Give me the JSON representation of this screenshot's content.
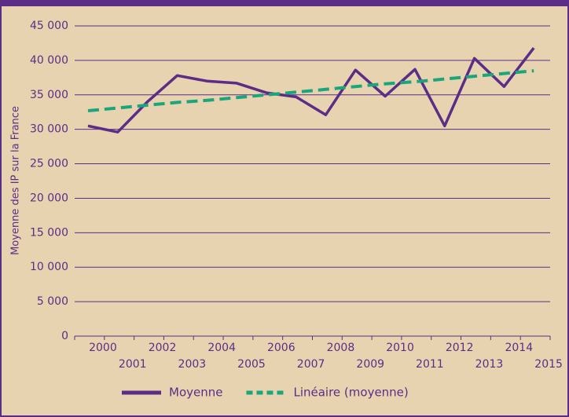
{
  "chart_data": {
    "type": "line",
    "y_label": "Moyenne des IP sur la France",
    "categories": [
      "2000",
      "2001",
      "2002",
      "2003",
      "2004",
      "2005",
      "2006",
      "2007",
      "2008",
      "2009",
      "2010",
      "2011",
      "2012",
      "2013",
      "2014",
      "2015"
    ],
    "series": [
      {
        "name": "Moyenne",
        "color": "#5b2d86",
        "dash": false,
        "values": [
          30500,
          29600,
          34000,
          37800,
          37000,
          36700,
          35300,
          34700,
          32100,
          38600,
          34800,
          38700,
          30500,
          40300,
          36200,
          41800
        ]
      },
      {
        "name": "Linéaire (moyenne)",
        "color": "#1aa67a",
        "dash": true,
        "values": [
          32700,
          33100,
          33500,
          33900,
          34200,
          34600,
          35000,
          35400,
          35800,
          36200,
          36600,
          36900,
          37300,
          37700,
          38100,
          38500
        ]
      }
    ],
    "ylim": [
      0,
      45000
    ],
    "yticks": [
      0,
      {
        "value": 5000,
        "label": "5 000"
      },
      {
        "value": 10000,
        "label": "10 000"
      },
      {
        "value": 15000,
        "label": "15 000"
      },
      {
        "value": 20000,
        "label": "20 000"
      },
      {
        "value": 25000,
        "label": "25 000"
      },
      {
        "value": 30000,
        "label": "30 000"
      },
      {
        "value": 35000,
        "label": "35 000"
      },
      {
        "value": 40000,
        "label": "40 000"
      },
      {
        "value": 45000,
        "label": "45 000"
      }
    ],
    "grid": true
  }
}
